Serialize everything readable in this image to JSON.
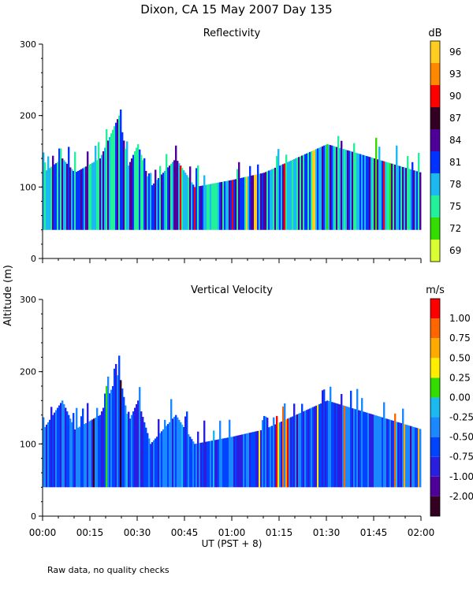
{
  "figure_title": "Dixon, CA 15 May 2007  Day 135",
  "y_label": "Altitude (m)",
  "x_label": "UT  (PST + 8)",
  "footnote": "Raw data, no quality checks",
  "chart_data": [
    {
      "type": "heatmap",
      "title": "Reflectivity",
      "colorbar_unit": "dB",
      "colorbar_labels": [
        "69",
        "72",
        "75",
        "78",
        "81",
        "84",
        "87",
        "90",
        "93",
        "96"
      ],
      "colorbar_colors": [
        "#d9ff33",
        "#33dd00",
        "#22f09a",
        "#1ab9f0",
        "#0033ff",
        "#4f0099",
        "#330022",
        "#ff0000",
        "#ff8800",
        "#ffcc22"
      ],
      "ylim": [
        0,
        300
      ],
      "yticks": [
        0,
        100,
        200,
        300
      ],
      "xlim_minutes": [
        0,
        120
      ],
      "xticks": [
        "00:00",
        "00:15",
        "00:30",
        "00:45",
        "01:00",
        "01:15",
        "01:30",
        "01:45",
        "02:00"
      ],
      "echo_base_m": 40,
      "echo_top_profile": [
        {
          "t": 0,
          "h": 120
        },
        {
          "t": 6,
          "h": 140
        },
        {
          "t": 10,
          "h": 120
        },
        {
          "t": 18,
          "h": 140
        },
        {
          "t": 24,
          "h": 200
        },
        {
          "t": 27,
          "h": 130
        },
        {
          "t": 30,
          "h": 160
        },
        {
          "t": 34,
          "h": 100
        },
        {
          "t": 42,
          "h": 140
        },
        {
          "t": 48,
          "h": 100
        },
        {
          "t": 60,
          "h": 110
        },
        {
          "t": 70,
          "h": 120
        },
        {
          "t": 90,
          "h": 160
        },
        {
          "t": 120,
          "h": 120
        }
      ],
      "dominant_colors": [
        "#1ab9f0",
        "#22f09a",
        "#0033ff",
        "#4f0099"
      ]
    },
    {
      "type": "heatmap",
      "title": "Vertical Velocity",
      "colorbar_unit": "m/s",
      "colorbar_labels": [
        "-2.00",
        "-1.00",
        "-0.75",
        "-0.50",
        "-0.25",
        "0.00",
        "0.25",
        "0.50",
        "0.75",
        "1.00"
      ],
      "colorbar_colors": [
        "#330022",
        "#4f0099",
        "#2a1ee0",
        "#0044ff",
        "#1a88ff",
        "#1ab9f0",
        "#33dd00",
        "#ffee00",
        "#ffaa00",
        "#ff6600",
        "#ff0000"
      ],
      "ylim": [
        0,
        300
      ],
      "yticks": [
        0,
        100,
        200,
        300
      ],
      "xlim_minutes": [
        0,
        120
      ],
      "xticks": [
        "00:00",
        "00:15",
        "00:30",
        "00:45",
        "01:00",
        "01:15",
        "01:30",
        "01:45",
        "02:00"
      ],
      "echo_base_m": 40,
      "echo_top_profile": [
        {
          "t": 0,
          "h": 120
        },
        {
          "t": 6,
          "h": 160
        },
        {
          "t": 10,
          "h": 120
        },
        {
          "t": 18,
          "h": 140
        },
        {
          "t": 24,
          "h": 200
        },
        {
          "t": 27,
          "h": 130
        },
        {
          "t": 30,
          "h": 160
        },
        {
          "t": 34,
          "h": 100
        },
        {
          "t": 42,
          "h": 140
        },
        {
          "t": 48,
          "h": 100
        },
        {
          "t": 60,
          "h": 110
        },
        {
          "t": 70,
          "h": 120
        },
        {
          "t": 90,
          "h": 160
        },
        {
          "t": 120,
          "h": 120
        }
      ],
      "dominant_colors": [
        "#0044ff",
        "#1a88ff",
        "#2a1ee0"
      ]
    }
  ]
}
